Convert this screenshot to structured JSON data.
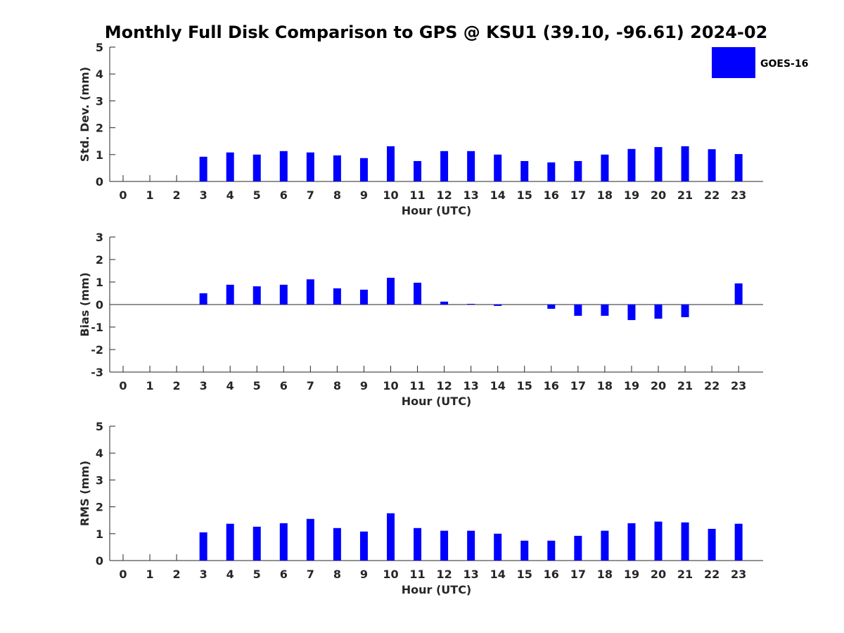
{
  "title": "Monthly Full Disk Comparison to GPS @ KSU1 (39.10, -96.61) 2024-02",
  "legend": {
    "label": "GOES-16",
    "color": "#0000ff",
    "placement": "top-right"
  },
  "colors": {
    "bar": "#0000ff",
    "axis": "#262626"
  },
  "chart_data": [
    {
      "type": "bar",
      "xlabel": "Hour (UTC)",
      "ylabel": "Std. Dev. (mm)",
      "ylim": [
        0,
        5
      ],
      "yticks": [
        0,
        1,
        2,
        3,
        4,
        5
      ],
      "grid": false,
      "series": [
        {
          "name": "GOES-16",
          "categories": [
            "0",
            "1",
            "2",
            "3",
            "4",
            "5",
            "6",
            "7",
            "8",
            "9",
            "10",
            "11",
            "12",
            "13",
            "14",
            "15",
            "16",
            "17",
            "18",
            "19",
            "20",
            "21",
            "22",
            "23"
          ],
          "values": [
            null,
            null,
            null,
            0.92,
            1.08,
            1.0,
            1.13,
            1.08,
            0.97,
            0.87,
            1.31,
            0.76,
            1.13,
            1.13,
            1.0,
            0.76,
            0.71,
            0.76,
            1.0,
            1.21,
            1.28,
            1.31,
            1.2,
            1.02
          ]
        }
      ]
    },
    {
      "type": "bar",
      "xlabel": "Hour (UTC)",
      "ylabel": "Bias (mm)",
      "ylim": [
        -3,
        3
      ],
      "yticks": [
        -3,
        -2,
        -1,
        0,
        1,
        2,
        3
      ],
      "grid": false,
      "series": [
        {
          "name": "GOES-16",
          "categories": [
            "0",
            "1",
            "2",
            "3",
            "4",
            "5",
            "6",
            "7",
            "8",
            "9",
            "10",
            "11",
            "12",
            "13",
            "14",
            "15",
            "16",
            "17",
            "18",
            "19",
            "20",
            "21",
            "22",
            "23"
          ],
          "values": [
            null,
            null,
            null,
            0.5,
            0.88,
            0.81,
            0.88,
            1.12,
            0.72,
            0.66,
            1.19,
            0.97,
            0.13,
            0.03,
            -0.06,
            0.0,
            -0.19,
            -0.5,
            -0.5,
            -0.69,
            -0.63,
            -0.56,
            0.0,
            0.94
          ]
        }
      ]
    },
    {
      "type": "bar",
      "xlabel": "Hour (UTC)",
      "ylabel": "RMS (mm)",
      "ylim": [
        0,
        5
      ],
      "yticks": [
        0,
        1,
        2,
        3,
        4,
        5
      ],
      "grid": false,
      "series": [
        {
          "name": "GOES-16",
          "categories": [
            "0",
            "1",
            "2",
            "3",
            "4",
            "5",
            "6",
            "7",
            "8",
            "9",
            "10",
            "11",
            "12",
            "13",
            "14",
            "15",
            "16",
            "17",
            "18",
            "19",
            "20",
            "21",
            "22",
            "23"
          ],
          "values": [
            null,
            null,
            null,
            1.05,
            1.37,
            1.26,
            1.39,
            1.55,
            1.21,
            1.08,
            1.76,
            1.21,
            1.11,
            1.11,
            1.0,
            0.74,
            0.74,
            0.92,
            1.11,
            1.39,
            1.45,
            1.42,
            1.18,
            1.37
          ]
        }
      ]
    }
  ]
}
